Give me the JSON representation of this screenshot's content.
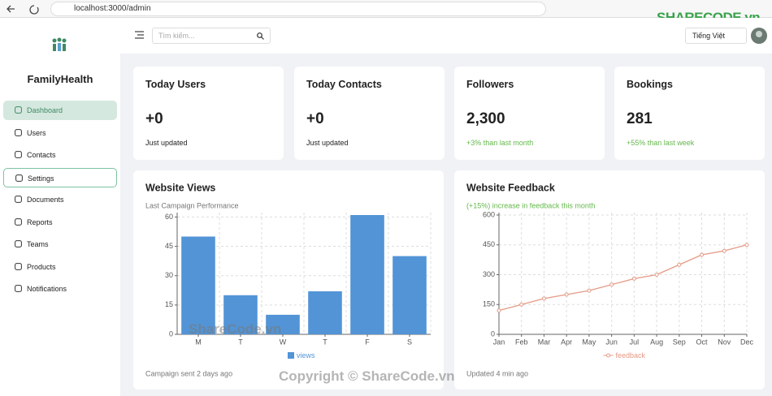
{
  "browser": {
    "url": "localhost:3000/admin"
  },
  "watermark": {
    "logo": "SHARECODE.vn",
    "center": "ShareCode.vn",
    "copyright": "Copyright © ShareCode.vn"
  },
  "sidebar": {
    "brand": "FamilyHealth",
    "menu": [
      "Dashboard",
      "Users",
      "Contacts",
      "Settings",
      "Documents",
      "Reports",
      "Teams",
      "Products",
      "Notifications"
    ]
  },
  "header": {
    "search_placeholder": "Tìm kiếm...",
    "language": "Tiếng Việt"
  },
  "stats": [
    {
      "title": "Today Users",
      "value": "+0",
      "note": "Just updated"
    },
    {
      "title": "Today Contacts",
      "value": "+0",
      "note": "Just updated"
    },
    {
      "title": "Followers",
      "value": "2,300",
      "note": "+3% than last month"
    },
    {
      "title": "Bookings",
      "value": "281",
      "note": "+55% than last week"
    }
  ],
  "chart_data": [
    {
      "type": "bar",
      "title": "Website Views",
      "subtitle": "Last Campaign Performance",
      "footer": "Campaign sent 2 days ago",
      "categories": [
        "M",
        "T",
        "W",
        "T",
        "F",
        "S"
      ],
      "series": [
        {
          "name": "views",
          "color": "#5294d6",
          "values": [
            50,
            20,
            10,
            22,
            61,
            40
          ]
        }
      ],
      "ylim": [
        0,
        61
      ],
      "yticks": [
        0,
        15,
        30,
        45,
        60
      ],
      "grid": true
    },
    {
      "type": "line",
      "title": "Website Feedback",
      "subtitle": "(+15%) increase in feedback this month",
      "footer": "Updated 4 min ago",
      "categories": [
        "Jan",
        "Feb",
        "Mar",
        "Apr",
        "May",
        "Jun",
        "Jul",
        "Aug",
        "Sep",
        "Oct",
        "Nov",
        "Dec"
      ],
      "series": [
        {
          "name": "feedback",
          "color": "#e59a85",
          "values": [
            120,
            150,
            180,
            200,
            220,
            250,
            280,
            300,
            350,
            400,
            420,
            450
          ]
        }
      ],
      "ylim": [
        0,
        600
      ],
      "yticks": [
        0,
        150,
        300,
        450,
        600
      ],
      "grid": true
    }
  ]
}
